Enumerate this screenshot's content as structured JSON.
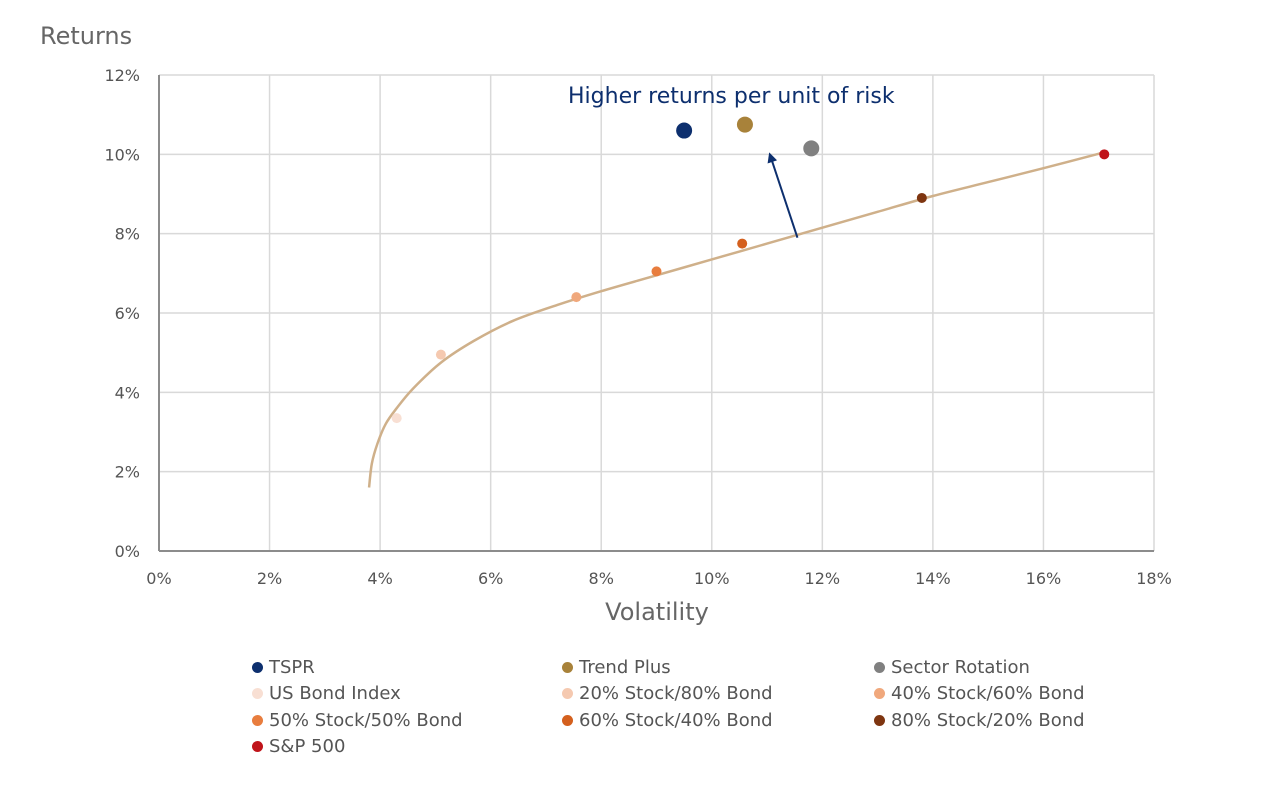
{
  "chart_data": {
    "type": "scatter",
    "title": "",
    "xlabel": "Volatility",
    "ylabel": "Returns",
    "xlim": [
      0,
      18
    ],
    "ylim": [
      0,
      12
    ],
    "x_ticks": [
      0,
      2,
      4,
      6,
      8,
      10,
      12,
      14,
      16,
      18
    ],
    "y_ticks": [
      0,
      2,
      4,
      6,
      8,
      10,
      12
    ],
    "x_tick_labels": [
      "0%",
      "2%",
      "4%",
      "6%",
      "8%",
      "10%",
      "12%",
      "14%",
      "16%",
      "18%"
    ],
    "y_tick_labels": [
      "0%",
      "2%",
      "4%",
      "6%",
      "8%",
      "10%",
      "12%"
    ],
    "grid": true,
    "legend_position": "bottom",
    "series": [
      {
        "name": "TSPR",
        "x": 9.5,
        "y": 10.6,
        "color": "#0d2f6e",
        "size": "large"
      },
      {
        "name": "Trend Plus",
        "x": 10.6,
        "y": 10.75,
        "color": "#a8823a",
        "size": "large"
      },
      {
        "name": "Sector Rotation",
        "x": 11.8,
        "y": 10.15,
        "color": "#808080",
        "size": "large"
      },
      {
        "name": "US Bond Index",
        "x": 4.3,
        "y": 3.35,
        "color": "#f8dfd3",
        "size": "small"
      },
      {
        "name": "20% Stock/80% Bond",
        "x": 5.1,
        "y": 4.95,
        "color": "#f5c9b0",
        "size": "small"
      },
      {
        "name": "40% Stock/60% Bond",
        "x": 7.55,
        "y": 6.4,
        "color": "#f0a87c",
        "size": "small"
      },
      {
        "name": "50% Stock/50% Bond",
        "x": 9.0,
        "y": 7.05,
        "color": "#e87d3e",
        "size": "small"
      },
      {
        "name": "60% Stock/40% Bond",
        "x": 10.55,
        "y": 7.75,
        "color": "#d4601e",
        "size": "small"
      },
      {
        "name": "80% Stock/20% Bond",
        "x": 13.8,
        "y": 8.9,
        "color": "#7e3510",
        "size": "small"
      },
      {
        "name": "S&P 500",
        "x": 17.1,
        "y": 10.0,
        "color": "#c0141a",
        "size": "small"
      }
    ],
    "frontier_curve": {
      "color": "#cfb08a",
      "points": [
        [
          3.8,
          1.6
        ],
        [
          3.85,
          2.2
        ],
        [
          3.95,
          2.7
        ],
        [
          4.1,
          3.2
        ],
        [
          4.3,
          3.6
        ],
        [
          4.6,
          4.1
        ],
        [
          5.1,
          4.75
        ],
        [
          5.7,
          5.3
        ],
        [
          6.4,
          5.8
        ],
        [
          7.2,
          6.2
        ],
        [
          8.0,
          6.55
        ],
        [
          9.0,
          6.95
        ],
        [
          10.0,
          7.35
        ],
        [
          11.0,
          7.75
        ],
        [
          12.0,
          8.15
        ],
        [
          13.0,
          8.55
        ],
        [
          14.0,
          8.95
        ],
        [
          15.0,
          9.3
        ],
        [
          16.0,
          9.65
        ],
        [
          17.1,
          10.05
        ]
      ]
    },
    "annotations": [
      {
        "text": "Higher returns per unit of risk",
        "color": "#0d2f6e"
      }
    ],
    "arrow": {
      "from": [
        11.55,
        7.9
      ],
      "to": [
        11.05,
        10.0
      ],
      "color": "#0d2f6e"
    }
  }
}
